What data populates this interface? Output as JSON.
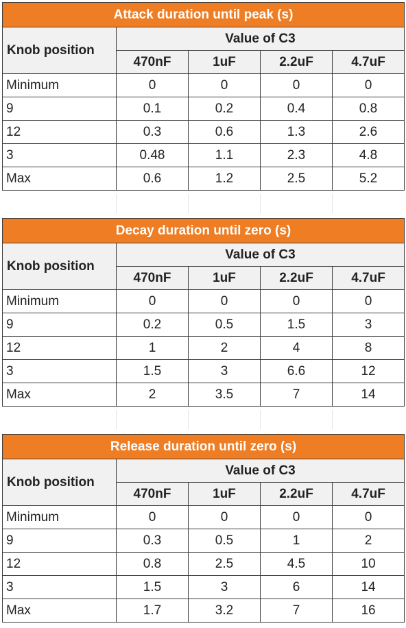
{
  "knob_header": "Knob position",
  "c3_header": "Value of C3",
  "c3_values": [
    "470nF",
    "1uF",
    "2.2uF",
    "4.7uF"
  ],
  "tables": [
    {
      "title": "Attack duration until peak (s)",
      "rows": [
        {
          "label": "Minimum",
          "values": [
            "0",
            "0",
            "0",
            "0"
          ]
        },
        {
          "label": "9",
          "values": [
            "0.1",
            "0.2",
            "0.4",
            "0.8"
          ]
        },
        {
          "label": "12",
          "values": [
            "0.3",
            "0.6",
            "1.3",
            "2.6"
          ]
        },
        {
          "label": "3",
          "values": [
            "0.48",
            "1.1",
            "2.3",
            "4.8"
          ]
        },
        {
          "label": "Max",
          "values": [
            "0.6",
            "1.2",
            "2.5",
            "5.2"
          ]
        }
      ]
    },
    {
      "title": "Decay duration until zero (s)",
      "rows": [
        {
          "label": "Minimum",
          "values": [
            "0",
            "0",
            "0",
            "0"
          ]
        },
        {
          "label": "9",
          "values": [
            "0.2",
            "0.5",
            "1.5",
            "3"
          ]
        },
        {
          "label": "12",
          "values": [
            "1",
            "2",
            "4",
            "8"
          ]
        },
        {
          "label": "3",
          "values": [
            "1.5",
            "3",
            "6.6",
            "12"
          ]
        },
        {
          "label": "Max",
          "values": [
            "2",
            "3.5",
            "7",
            "14"
          ]
        }
      ]
    },
    {
      "title": "Release duration until zero (s)",
      "rows": [
        {
          "label": "Minimum",
          "values": [
            "0",
            "0",
            "0",
            "0"
          ]
        },
        {
          "label": "9",
          "values": [
            "0.3",
            "0.5",
            "1",
            "2"
          ]
        },
        {
          "label": "12",
          "values": [
            "0.8",
            "2.5",
            "4.5",
            "10"
          ]
        },
        {
          "label": "3",
          "values": [
            "1.5",
            "3",
            "6",
            "14"
          ]
        },
        {
          "label": "Max",
          "values": [
            "1.7",
            "3.2",
            "7",
            "16"
          ]
        }
      ]
    }
  ]
}
